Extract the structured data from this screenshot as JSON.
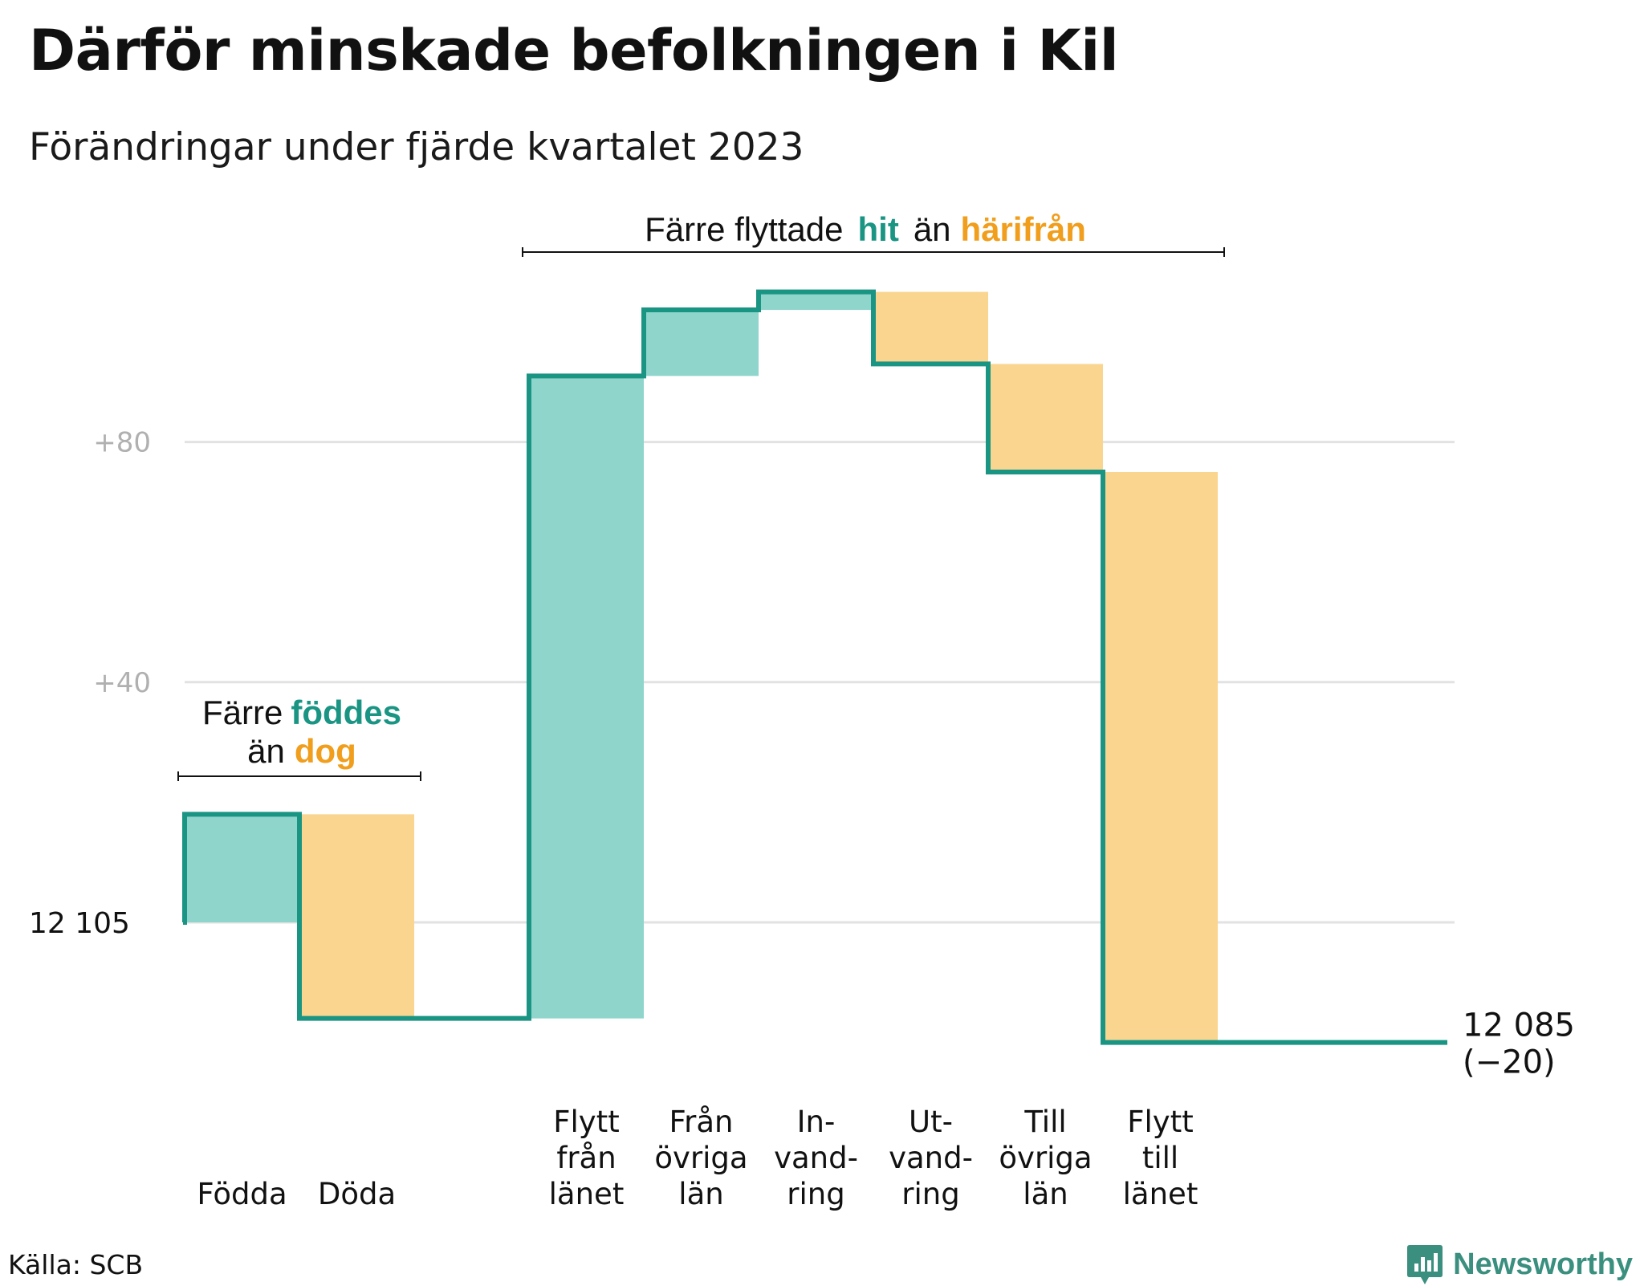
{
  "title": "Därför minskade befolkningen i Kil",
  "subtitle": "Förändringar under fjärde kvartalet 2023",
  "source": "Källa: SCB",
  "brand": "Newsworthy",
  "colors": {
    "increase": "#8fd5cc",
    "decrease": "#fad590",
    "line": "#1a9584",
    "grid": "#e2e2e2",
    "tick": "#b0b0b0"
  },
  "chart_data": {
    "type": "waterfall",
    "baseline": 12105,
    "baseline_label": "12  105",
    "final_value": 12085,
    "final_label": "12 085",
    "final_change_label": "(−20)",
    "y_ticks": [
      {
        "value": 12185,
        "label": "+80"
      },
      {
        "value": 12145,
        "label": "+40"
      },
      {
        "value": 12105,
        "label": ""
      }
    ],
    "ylim": [
      12060,
      12225
    ],
    "grid": true,
    "steps": [
      {
        "label": [
          "Födda"
        ],
        "change": 18
      },
      {
        "label": [
          "Döda"
        ],
        "change": -34
      },
      {
        "label": [],
        "change": 0
      },
      {
        "label": [
          "Flytt",
          "från",
          "länet"
        ],
        "change": 107
      },
      {
        "label": [
          "Från",
          "övriga",
          "län"
        ],
        "change": 11
      },
      {
        "label": [
          "In-",
          "vand-",
          "ring"
        ],
        "change": 3
      },
      {
        "label": [
          "Ut-",
          "vand-",
          "ring"
        ],
        "change": -12
      },
      {
        "label": [
          "Till",
          "övriga",
          "län"
        ],
        "change": -18
      },
      {
        "label": [
          "Flytt",
          "till",
          "länet"
        ],
        "change": -95
      },
      {
        "label": [],
        "change": 0
      },
      {
        "label": [],
        "change": 0
      }
    ],
    "annotations": [
      {
        "id": "births",
        "line1": "Färre",
        "line1_hl": "föddes",
        "line2": "än",
        "line2_hl": "dog",
        "from_step": 0,
        "to_step": 1
      },
      {
        "id": "moves",
        "line1": "Färre flyttade",
        "line1_hl": "hit",
        "line2": "än",
        "line2_hl": "härifrån",
        "from_step": 3,
        "to_step": 8
      }
    ]
  }
}
